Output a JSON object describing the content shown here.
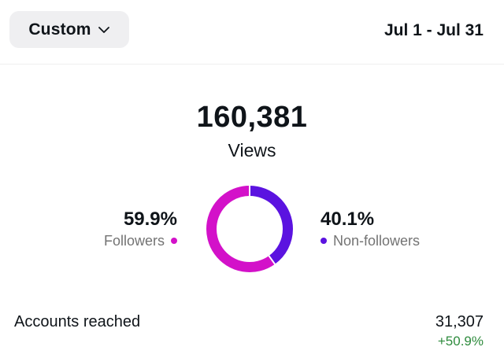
{
  "header": {
    "range_button_label": "Custom",
    "date_range": "Jul 1 - Jul 31"
  },
  "summary": {
    "total_value": "160,381",
    "total_label": "Views"
  },
  "segments": {
    "followers": {
      "percent_text": "59.9%",
      "label": "Followers",
      "value": 59.9,
      "color": "#d311c9"
    },
    "non_followers": {
      "percent_text": "40.1%",
      "label": "Non-followers",
      "value": 40.1,
      "color": "#5b13e0"
    }
  },
  "metrics": {
    "accounts_reached": {
      "label": "Accounts reached",
      "value": "31,307",
      "change": "+50.9%",
      "change_color": "#2e8b3d"
    }
  },
  "icons": {
    "range_chevron": "chevron-down-icon"
  }
}
